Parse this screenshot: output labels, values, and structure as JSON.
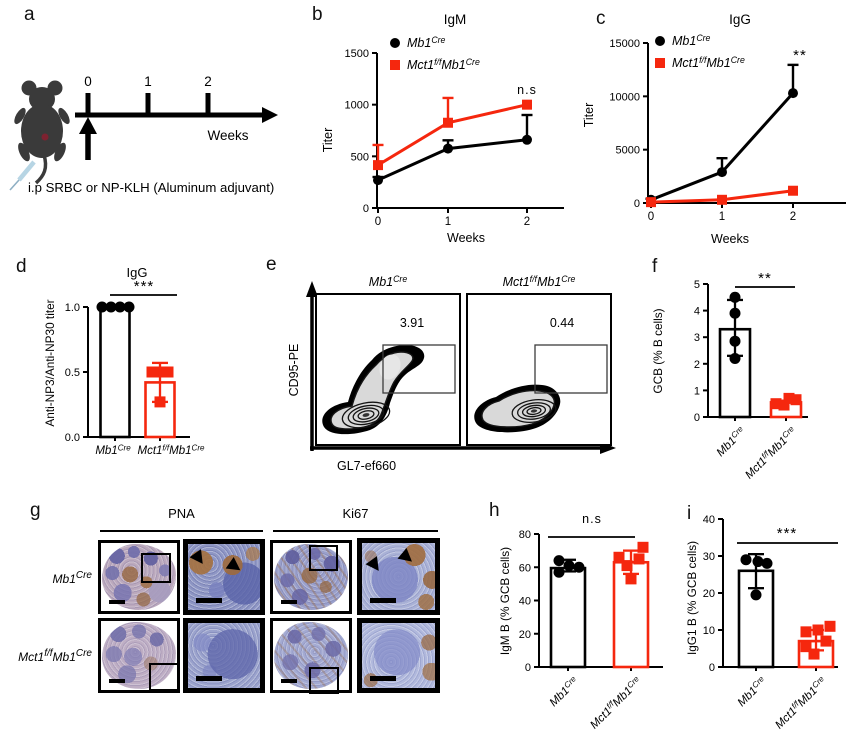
{
  "figure": {
    "panel_letters": {
      "a": "a",
      "b": "b",
      "c": "c",
      "d": "d",
      "e": "e",
      "f": "f",
      "g": "g",
      "h": "h",
      "i": "i"
    }
  },
  "colors": {
    "control": "#000000",
    "knockout": "#f5270e"
  },
  "genotypes": {
    "control": {
      "text": "Mb1Cre",
      "parts": [
        [
          "Mb1",
          false
        ],
        [
          "Cre",
          true
        ]
      ]
    },
    "knockout": {
      "text": "Mct1f/fMb1Cre",
      "parts": [
        [
          "Mct1",
          false
        ],
        [
          "f/f",
          true
        ],
        [
          "Mb1",
          false
        ],
        [
          "Cre",
          true
        ]
      ]
    }
  },
  "panel_a": {
    "timeline_ticks": [
      "0",
      "1",
      "2"
    ],
    "timeline_label": "Weeks",
    "caption": "i.p  SRBC or NP-KLH (Aluminum adjuvant)"
  },
  "panel_g": {
    "columns": [
      "PNA",
      "Ki67"
    ],
    "rows": [
      "control",
      "knockout"
    ]
  },
  "chart_data": [
    {
      "panel": "b",
      "type": "line",
      "title": "IgM",
      "xlabel": "Weeks",
      "ylabel": "Titer",
      "x": [
        0,
        1,
        2
      ],
      "ylim": [
        0,
        1500
      ],
      "yticks": [
        0,
        500,
        1000,
        1500
      ],
      "series": [
        {
          "genotype": "control",
          "marker": "circle",
          "values": [
            270,
            575,
            660
          ],
          "err_up": [
            30,
            80,
            240
          ]
        },
        {
          "genotype": "knockout",
          "marker": "square",
          "values": [
            415,
            825,
            1000
          ],
          "err_up": [
            195,
            240,
            0
          ]
        }
      ],
      "annotation": "n.s",
      "legend_position": "top-left"
    },
    {
      "panel": "c",
      "type": "line",
      "title": "IgG",
      "xlabel": "Weeks",
      "ylabel": "Titer",
      "x": [
        0,
        1,
        2
      ],
      "ylim": [
        0,
        15000
      ],
      "yticks": [
        0,
        5000,
        10000,
        15000
      ],
      "series": [
        {
          "genotype": "control",
          "marker": "circle",
          "values": [
            300,
            2900,
            10300
          ],
          "err_up": [
            100,
            1300,
            2650
          ]
        },
        {
          "genotype": "knockout",
          "marker": "square",
          "values": [
            80,
            300,
            1150
          ],
          "err_up": [
            0,
            0,
            0
          ]
        }
      ],
      "annotation": "**",
      "legend_position": "top-left"
    },
    {
      "panel": "d",
      "type": "bar_scatter",
      "title": "IgG",
      "ylabel": "Anti-NP3/Anti-NP30 titer",
      "ylim": [
        0,
        1
      ],
      "yticks": [
        0,
        0.5,
        1
      ],
      "ytick_decimals": 1,
      "groups": [
        {
          "genotype": "control",
          "bar": 1.0,
          "points": [
            1.0,
            1.0,
            1.0,
            1.0
          ]
        },
        {
          "genotype": "knockout",
          "bar": 0.42,
          "points": [
            0.5,
            0.5,
            0.5,
            0.27
          ],
          "err": [
            0.27,
            0.57
          ]
        }
      ],
      "significance": "***"
    },
    {
      "panel": "e",
      "type": "flow",
      "xlabel": "GL7-ef660",
      "ylabel": "CD95-PE",
      "plots": [
        {
          "genotype": "control",
          "gate_value": "3.91"
        },
        {
          "genotype": "knockout",
          "gate_value": "0.44"
        }
      ]
    },
    {
      "panel": "f",
      "type": "bar_scatter",
      "ylabel": "GCB (% B cells)",
      "ylim": [
        0,
        5
      ],
      "yticks": [
        0,
        1,
        2,
        3,
        4,
        5
      ],
      "groups": [
        {
          "genotype": "control",
          "bar": 3.3,
          "points": [
            4.5,
            3.9,
            2.85,
            2.2
          ],
          "err": [
            2.3,
            4.4
          ]
        },
        {
          "genotype": "knockout",
          "bar": 0.55,
          "points": [
            0.7,
            0.65,
            0.5,
            0.45
          ]
        }
      ],
      "significance": "**"
    },
    {
      "panel": "h",
      "type": "bar_scatter",
      "ylabel": "IgM B (% GCB cells)",
      "ylim": [
        0,
        80
      ],
      "yticks": [
        0,
        20,
        40,
        60,
        80
      ],
      "groups": [
        {
          "genotype": "control",
          "bar": 59.5,
          "points": [
            64,
            61,
            60,
            57
          ],
          "err": [
            57.5,
            64.5
          ]
        },
        {
          "genotype": "knockout",
          "bar": 63,
          "points": [
            72,
            66,
            65,
            61,
            53
          ],
          "err": [
            56,
            70
          ]
        }
      ],
      "significance": "n.s"
    },
    {
      "panel": "i",
      "type": "bar_scatter",
      "ylabel": "IgG1 B (% GCB cells)",
      "ylim": [
        0,
        40
      ],
      "yticks": [
        0,
        10,
        20,
        30,
        40
      ],
      "groups": [
        {
          "genotype": "control",
          "bar": 26,
          "points": [
            29,
            28.5,
            28,
            19.5
          ],
          "err": [
            21.3,
            30.5
          ]
        },
        {
          "genotype": "knockout",
          "bar": 7,
          "points": [
            11,
            10,
            9.5,
            7,
            5.5,
            3.5
          ],
          "err": [
            4.5,
            10
          ]
        }
      ],
      "significance": "***"
    }
  ]
}
